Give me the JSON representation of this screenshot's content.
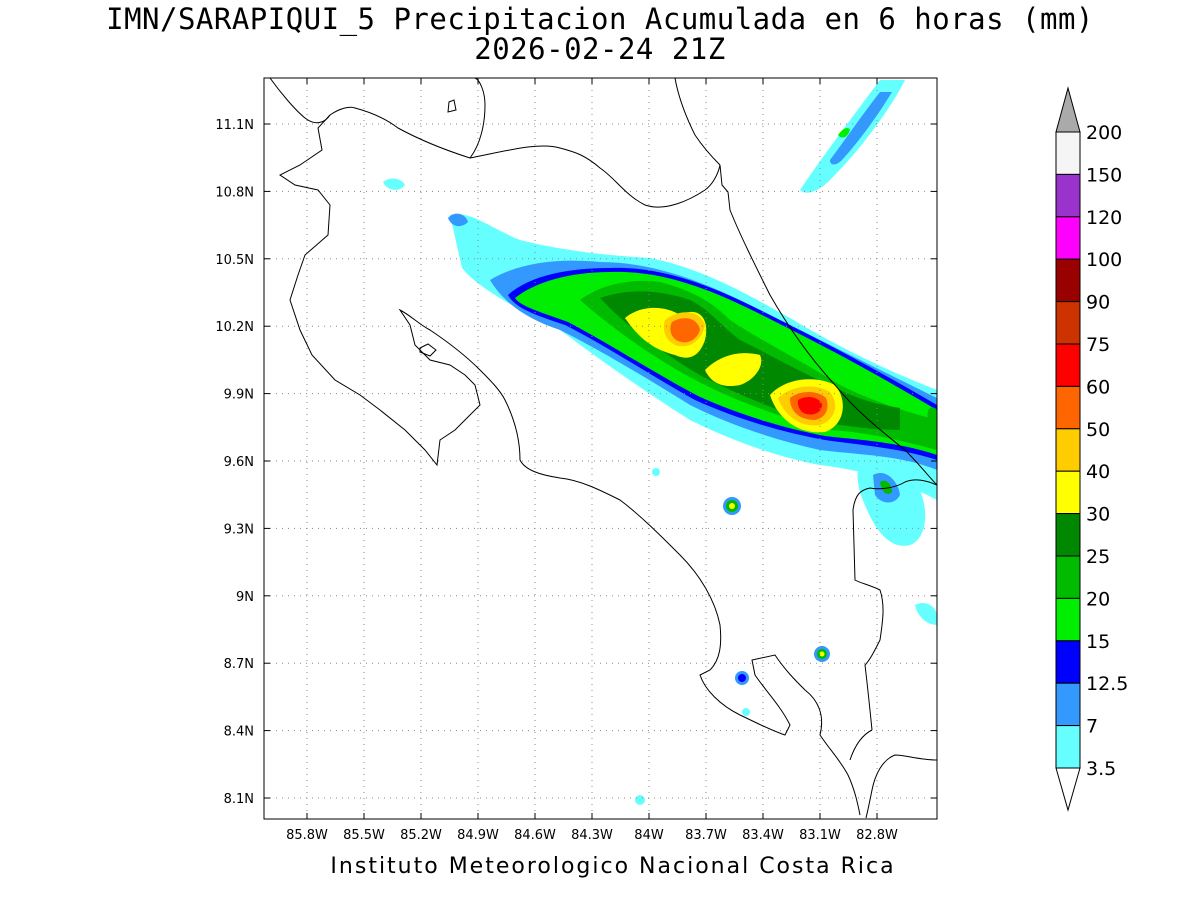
{
  "title_line1": "IMN/SARAPIQUI_5 Precipitacion Acumulada en 6 horas (mm)",
  "title_line2": "2026-02-24 21Z",
  "footer": "Instituto Meteorologico Nacional Costa Rica",
  "x_ticks": [
    "85.8W",
    "85.5W",
    "85.2W",
    "84.9W",
    "84.6W",
    "84.3W",
    "84W",
    "83.7W",
    "83.4W",
    "83.1W",
    "82.8W"
  ],
  "y_ticks": [
    "11.1N",
    "10.8N",
    "10.5N",
    "10.2N",
    "9.9N",
    "9.6N",
    "9.3N",
    "9N",
    "8.7N",
    "8.4N",
    "8.1N"
  ],
  "colorbar": {
    "labels": [
      "200",
      "150",
      "120",
      "100",
      "90",
      "75",
      "60",
      "50",
      "40",
      "30",
      "25",
      "20",
      "15",
      "12.5",
      "7",
      "3.5"
    ],
    "colors": [
      "#aaaaaa",
      "#f5f5f5",
      "#9933cc",
      "#ff00ff",
      "#990000",
      "#cc3300",
      "#ff0000",
      "#ff6600",
      "#ffcc00",
      "#ffff00",
      "#008800",
      "#00bb00",
      "#00ee00",
      "#0000ff",
      "#3399ff",
      "#66ffff"
    ]
  },
  "chart_data": {
    "type": "heatmap",
    "title": "IMN/SARAPIQUI_5 Precipitacion Acumulada en 6 horas (mm)",
    "subtitle": "2026-02-24 21Z",
    "xlim": [
      -86.0,
      -82.6
    ],
    "ylim": [
      8.0,
      11.3
    ],
    "grid": true,
    "legend": "right",
    "levels": [
      3.5,
      7,
      12.5,
      15,
      20,
      25,
      30,
      40,
      50,
      60,
      75,
      90,
      100,
      120,
      150,
      200
    ],
    "max_cells": [
      {
        "lon": -83.1,
        "lat": 9.86,
        "value": 60
      },
      {
        "lon": -83.75,
        "lat": 10.2,
        "value": 50
      },
      {
        "lon": -84.0,
        "lat": 10.2,
        "value": 40
      },
      {
        "lon": -83.55,
        "lat": 9.4,
        "value": 25
      },
      {
        "lon": -83.1,
        "lat": 8.73,
        "value": 25
      },
      {
        "lon": -83.5,
        "lat": 8.63,
        "value": 15
      }
    ]
  }
}
